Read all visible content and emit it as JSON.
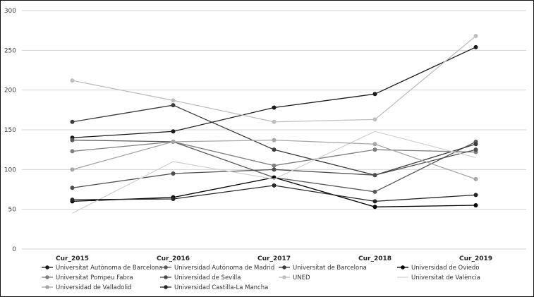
{
  "chart_data": {
    "type": "line",
    "title": "",
    "xlabel": "",
    "ylabel": "",
    "grid": true,
    "legend_position": "bottom",
    "categories": [
      "Cur_2015",
      "Cur_2016",
      "Cur_2017",
      "Cur_2018",
      "Cur_2019"
    ],
    "y_axis": {
      "min": 0,
      "max": 300,
      "step": 50,
      "ticks": [
        0,
        50,
        100,
        150,
        200,
        250,
        300
      ]
    },
    "gridline_color": "#d2d2d2",
    "tick_label_color": "#3f3f3f",
    "category_label_color": "#262626",
    "legend_label_color": "#333333",
    "series": [
      {
        "name": "Universitat Autònoma de Barcelona",
        "color": "#1a1a1a",
        "marker": true,
        "values": [
          140,
          148,
          178,
          195,
          254
        ]
      },
      {
        "name": "Universidad Autónoma de Madrid",
        "color": "#595959",
        "marker": true,
        "values": [
          137,
          135,
          90,
          72,
          135
        ]
      },
      {
        "name": "Universitat de Barcelona",
        "color": "#3b3b3b",
        "marker": true,
        "values": [
          160,
          181,
          125,
          93,
          132
        ]
      },
      {
        "name": "Universidad de Oviedo",
        "color": "#000000",
        "marker": true,
        "values": [
          60,
          65,
          90,
          53,
          55
        ]
      },
      {
        "name": "Universitat Pompeu Fabra",
        "color": "#7f7f7f",
        "marker": true,
        "values": [
          123,
          135,
          105,
          125,
          122
        ]
      },
      {
        "name": "Universidad de Sevilla",
        "color": "#4d4d4d",
        "marker": true,
        "values": [
          77,
          95,
          100,
          93,
          125
        ]
      },
      {
        "name": "UNED",
        "color": "#bfbfbf",
        "marker": true,
        "values": [
          212,
          187,
          160,
          163,
          268
        ]
      },
      {
        "name": "Universitat de València",
        "color": "#d4d4d4",
        "marker": false,
        "values": [
          45,
          110,
          88,
          148,
          115
        ]
      },
      {
        "name": "Universidad de Valladolid",
        "color": "#a6a6a6",
        "marker": true,
        "values": [
          100,
          135,
          137,
          132,
          88
        ]
      },
      {
        "name": "Universidad Castilla-La Mancha",
        "color": "#262626",
        "marker": true,
        "values": [
          62,
          63,
          80,
          60,
          68
        ]
      }
    ]
  }
}
